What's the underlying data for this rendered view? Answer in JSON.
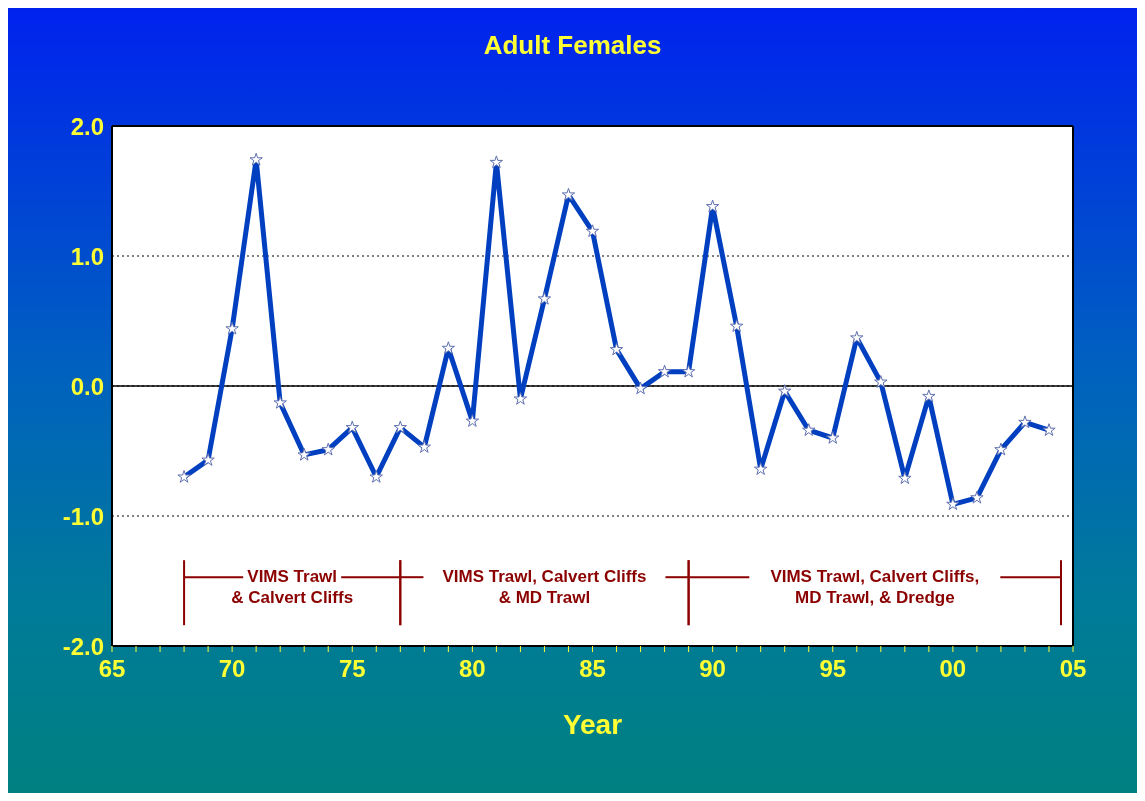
{
  "chart_data": {
    "type": "line",
    "title": "Adult Females",
    "xlabel": "Year",
    "x": [
      1968,
      1969,
      1970,
      1971,
      1972,
      1973,
      1974,
      1975,
      1976,
      1977,
      1978,
      1979,
      1980,
      1981,
      1982,
      1983,
      1984,
      1985,
      1986,
      1987,
      1988,
      1989,
      1990,
      1991,
      1992,
      1993,
      1994,
      1995,
      1996,
      1997,
      1998,
      1999,
      2000,
      2001,
      2002,
      2003,
      2004
    ],
    "series": [
      {
        "color": "#0040c0",
        "values": [
          -0.7,
          -0.57,
          0.44,
          1.74,
          -0.13,
          -0.53,
          -0.49,
          -0.32,
          -0.7,
          -0.32,
          -0.47,
          0.29,
          -0.27,
          1.72,
          -0.1,
          0.67,
          1.47,
          1.19,
          0.28,
          -0.02,
          0.11,
          0.11,
          1.38,
          0.46,
          -0.64,
          -0.04,
          -0.34,
          -0.4,
          0.37,
          0.03,
          -0.71,
          -0.08,
          -0.91,
          -0.86,
          -0.49,
          -0.28,
          -0.34
        ]
      }
    ],
    "xlim": [
      1965,
      2005
    ],
    "xticks": [
      {
        "value": 1965,
        "label": "65"
      },
      {
        "value": 1966,
        "label": null
      },
      {
        "value": 1967,
        "label": null
      },
      {
        "value": 1968,
        "label": null
      },
      {
        "value": 1969,
        "label": null
      },
      {
        "value": 1970,
        "label": "70"
      },
      {
        "value": 1971,
        "label": null
      },
      {
        "value": 1972,
        "label": null
      },
      {
        "value": 1973,
        "label": null
      },
      {
        "value": 1974,
        "label": null
      },
      {
        "value": 1975,
        "label": "75"
      },
      {
        "value": 1976,
        "label": null
      },
      {
        "value": 1977,
        "label": null
      },
      {
        "value": 1978,
        "label": null
      },
      {
        "value": 1979,
        "label": null
      },
      {
        "value": 1980,
        "label": "80"
      },
      {
        "value": 1981,
        "label": null
      },
      {
        "value": 1982,
        "label": null
      },
      {
        "value": 1983,
        "label": null
      },
      {
        "value": 1984,
        "label": null
      },
      {
        "value": 1985,
        "label": "85"
      },
      {
        "value": 1986,
        "label": null
      },
      {
        "value": 1987,
        "label": null
      },
      {
        "value": 1988,
        "label": null
      },
      {
        "value": 1989,
        "label": null
      },
      {
        "value": 1990,
        "label": "90"
      },
      {
        "value": 1991,
        "label": null
      },
      {
        "value": 1992,
        "label": null
      },
      {
        "value": 1993,
        "label": null
      },
      {
        "value": 1994,
        "label": null
      },
      {
        "value": 1995,
        "label": "95"
      },
      {
        "value": 1996,
        "label": null
      },
      {
        "value": 1997,
        "label": null
      },
      {
        "value": 1998,
        "label": null
      },
      {
        "value": 1999,
        "label": null
      },
      {
        "value": 2000,
        "label": "00"
      },
      {
        "value": 2001,
        "label": null
      },
      {
        "value": 2002,
        "label": null
      },
      {
        "value": 2003,
        "label": null
      },
      {
        "value": 2004,
        "label": null
      },
      {
        "value": 2005,
        "label": "05"
      }
    ],
    "ylim": [
      -2,
      2
    ],
    "yticks": [
      {
        "value": -2,
        "label": "-2.0"
      },
      {
        "value": -1,
        "label": "-1.0"
      },
      {
        "value": 0,
        "label": "0.0"
      },
      {
        "value": 1,
        "label": "1.0"
      },
      {
        "value": 2,
        "label": "2.0"
      }
    ],
    "grid": "y",
    "marker": "star",
    "line_style": "solid",
    "ref_lines": [
      {
        "axis": "y",
        "value": 0,
        "color": "#000000",
        "line_style": "solid"
      }
    ],
    "annotations": [
      "VIMS Trawl\n& Calvert Cliffs",
      "VIMS Trawl, Calvert Cliffs\n& MD Trawl",
      "VIMS Trawl, Calvert Cliffs,\nMD Trawl, & Dredge"
    ]
  }
}
